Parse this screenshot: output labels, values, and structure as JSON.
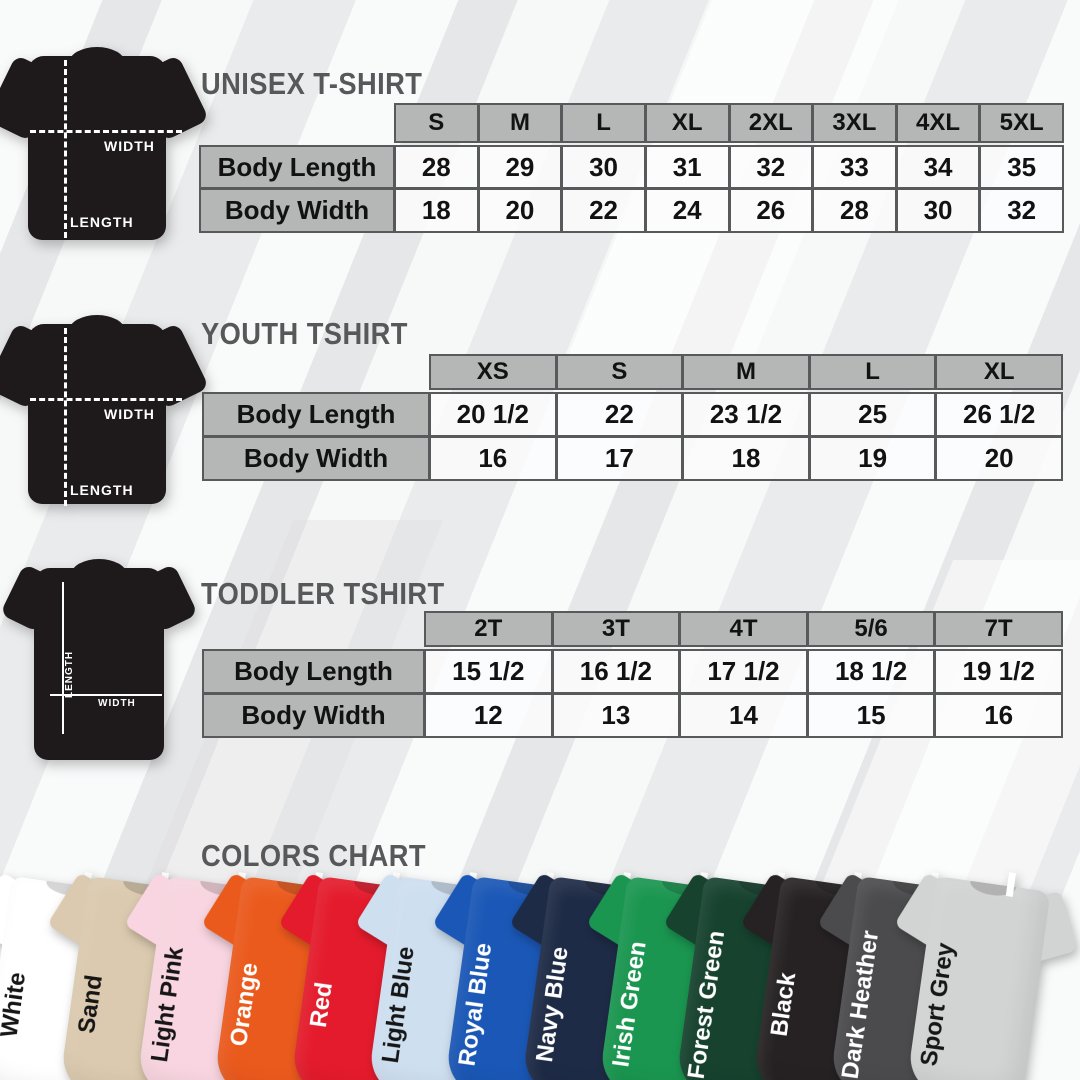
{
  "theme": {
    "table_header_bg": "#b5b6b6",
    "table_border": "#58595b",
    "title_color": "#57585a",
    "diagram_shirt_color": "#1e1a1b"
  },
  "sections": [
    {
      "id": "unisex",
      "title": "UNISEX T-SHIRT",
      "diagram": {
        "width_label": "WIDTH",
        "length_label": "LENGTH"
      },
      "table": {
        "columns": [
          "S",
          "M",
          "L",
          "XL",
          "2XL",
          "3XL",
          "4XL",
          "5XL"
        ],
        "rows": [
          {
            "label": "Body Length",
            "values": [
              "28",
              "29",
              "30",
              "31",
              "32",
              "33",
              "34",
              "35"
            ]
          },
          {
            "label": "Body Width",
            "values": [
              "18",
              "20",
              "22",
              "24",
              "26",
              "28",
              "30",
              "32"
            ]
          }
        ]
      }
    },
    {
      "id": "youth",
      "title": "YOUTH TSHIRT",
      "diagram": {
        "width_label": "WIDTH",
        "length_label": "LENGTH"
      },
      "table": {
        "columns": [
          "XS",
          "S",
          "M",
          "L",
          "XL"
        ],
        "rows": [
          {
            "label": "Body Length",
            "values": [
              "20 1/2",
              "22",
              "23 1/2",
              "25",
              "26 1/2"
            ]
          },
          {
            "label": "Body Width",
            "values": [
              "16",
              "17",
              "18",
              "19",
              "20"
            ]
          }
        ]
      }
    },
    {
      "id": "toddler",
      "title": "TODDLER TSHIRT",
      "diagram": {
        "width_label": "WIDTH",
        "length_label": "LENGTH"
      },
      "table": {
        "columns": [
          "2T",
          "3T",
          "4T",
          "5/6",
          "7T"
        ],
        "rows": [
          {
            "label": "Body Length",
            "values": [
              "15 1/2",
              "16 1/2",
              "17 1/2",
              "18 1/2",
              "19 1/2"
            ]
          },
          {
            "label": "Body Width",
            "values": [
              "12",
              "13",
              "14",
              "15",
              "16"
            ]
          }
        ]
      }
    }
  ],
  "colors_chart": {
    "title": "COLORS CHART",
    "shirts": [
      {
        "name": "White",
        "hex": "#ffffff",
        "label_color": "#161616"
      },
      {
        "name": "Sand",
        "hex": "#dbcaaf",
        "label_color": "#161616"
      },
      {
        "name": "Light Pink",
        "hex": "#f8d5e0",
        "label_color": "#161616"
      },
      {
        "name": "Orange",
        "hex": "#eb5a1d",
        "label_color": "#ffffff"
      },
      {
        "name": "Red",
        "hex": "#e41b2c",
        "label_color": "#ffffff"
      },
      {
        "name": "Light Blue",
        "hex": "#cedff0",
        "label_color": "#161616"
      },
      {
        "name": "Royal Blue",
        "hex": "#1a57b6",
        "label_color": "#ffffff"
      },
      {
        "name": "Navy Blue",
        "hex": "#1e2b46",
        "label_color": "#ffffff"
      },
      {
        "name": "Irish Green",
        "hex": "#1a9650",
        "label_color": "#ffffff"
      },
      {
        "name": "Forest Green",
        "hex": "#16422e",
        "label_color": "#ffffff"
      },
      {
        "name": "Black",
        "hex": "#262223",
        "label_color": "#ffffff"
      },
      {
        "name": "Dark Heather",
        "hex": "#4b4b4d",
        "label_color": "#ffffff"
      },
      {
        "name": "Sport Grey",
        "hex": "#d2d3d3",
        "label_color": "#161616"
      }
    ]
  }
}
